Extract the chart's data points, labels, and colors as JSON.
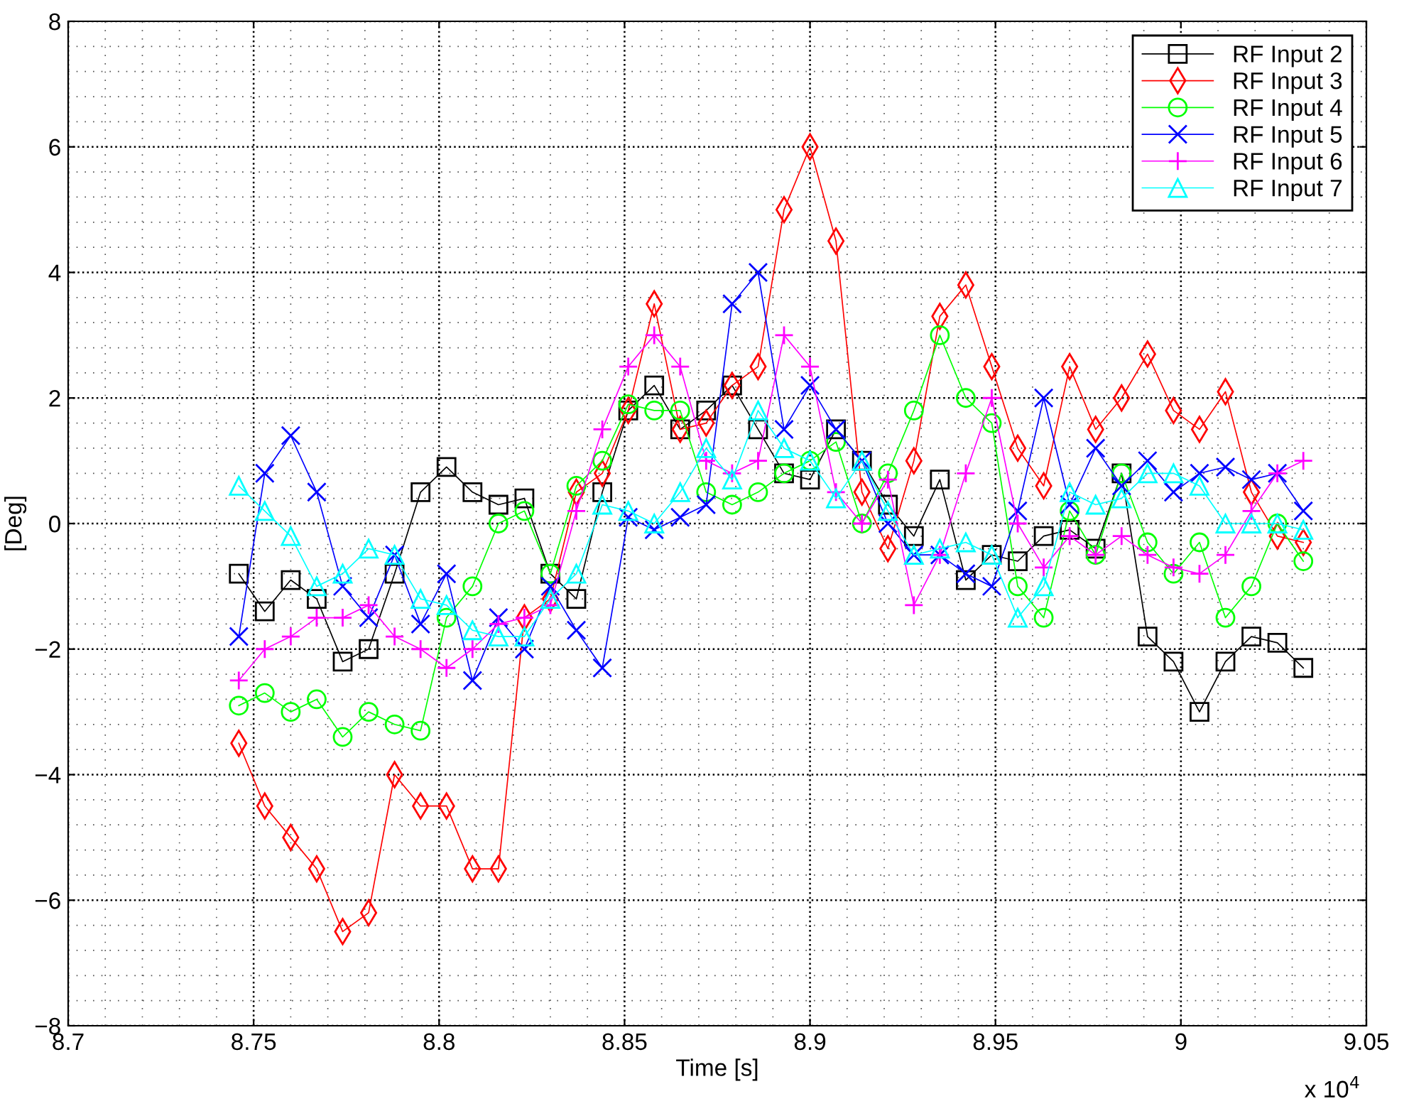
{
  "chart_data": {
    "type": "line",
    "xlabel": "Time [s]",
    "ylabel": "[Deg]",
    "x": [
      8.746,
      8.753,
      8.76,
      8.767,
      8.774,
      8.781,
      8.788,
      8.795,
      8.802,
      8.809,
      8.816,
      8.823,
      8.83,
      8.837,
      8.844,
      8.851,
      8.858,
      8.865,
      8.872,
      8.879,
      8.886,
      8.893,
      8.9,
      8.907,
      8.914,
      8.921,
      8.928,
      8.935,
      8.942,
      8.949,
      8.956,
      8.963,
      8.97,
      8.977,
      8.984,
      8.991,
      8.998,
      9.005,
      9.012,
      9.019,
      9.026,
      9.033
    ],
    "series": [
      {
        "name": "RF Input 2",
        "color": "#000000",
        "marker": "square",
        "values": [
          -0.8,
          -1.4,
          -0.9,
          -1.2,
          -2.2,
          -2.0,
          -0.8,
          0.5,
          0.9,
          0.5,
          0.3,
          0.4,
          -0.8,
          -1.2,
          0.5,
          1.8,
          2.2,
          1.5,
          1.8,
          2.2,
          1.5,
          0.8,
          0.7,
          1.5,
          1.0,
          0.3,
          -0.2,
          0.7,
          -0.9,
          -0.5,
          -0.6,
          -0.2,
          -0.1,
          -0.4,
          0.8,
          -1.8,
          -2.2,
          -3.0,
          -2.2,
          -1.8,
          -1.9,
          -2.3
        ]
      },
      {
        "name": "RF Input 3",
        "color": "#ff0000",
        "marker": "diamond",
        "values": [
          -3.5,
          -4.5,
          -5.0,
          -5.5,
          -6.5,
          -6.2,
          -4.0,
          -4.5,
          -4.5,
          -5.5,
          -5.5,
          -1.5,
          -1.2,
          0.5,
          0.8,
          1.8,
          3.5,
          1.5,
          1.6,
          2.2,
          2.5,
          5.0,
          6.0,
          4.5,
          0.5,
          -0.4,
          1.0,
          3.3,
          3.8,
          2.5,
          1.2,
          0.6,
          2.5,
          1.5,
          2.0,
          2.7,
          1.8,
          1.5,
          2.1,
          0.5,
          -0.2,
          -0.3
        ]
      },
      {
        "name": "RF Input 4",
        "color": "#00ff00",
        "marker": "circle",
        "values": [
          -2.9,
          -2.7,
          -3.0,
          -2.8,
          -3.4,
          -3.0,
          -3.2,
          -3.3,
          -1.5,
          -1.0,
          0.0,
          0.2,
          -0.8,
          0.6,
          1.0,
          1.9,
          1.8,
          1.8,
          0.5,
          0.3,
          0.5,
          0.8,
          1.0,
          1.3,
          0.0,
          0.8,
          1.8,
          3.0,
          2.0,
          1.6,
          -1.0,
          -1.5,
          0.2,
          -0.5,
          0.8,
          -0.3,
          -0.8,
          -0.3,
          -1.5,
          -1.0,
          0.0,
          -0.6
        ]
      },
      {
        "name": "RF Input 5",
        "color": "#0000ff",
        "marker": "x",
        "values": [
          -1.8,
          0.8,
          1.4,
          0.5,
          -1.0,
          -1.5,
          -0.5,
          -1.6,
          -0.8,
          -2.5,
          -1.5,
          -2.0,
          -1.0,
          -1.7,
          -2.3,
          0.1,
          -0.1,
          0.1,
          0.3,
          3.5,
          4.0,
          1.5,
          2.2,
          1.5,
          1.0,
          0.0,
          -0.5,
          -0.5,
          -0.8,
          -1.0,
          0.2,
          2.0,
          0.3,
          1.2,
          0.6,
          1.0,
          0.5,
          0.8,
          0.9,
          0.7,
          0.8,
          0.2
        ]
      },
      {
        "name": "RF Input 6",
        "color": "#ff00ff",
        "marker": "plus",
        "values": [
          -2.5,
          -2.0,
          -1.8,
          -1.5,
          -1.5,
          -1.3,
          -1.8,
          -2.0,
          -2.3,
          -2.0,
          -1.6,
          -1.5,
          -1.3,
          0.2,
          1.5,
          2.5,
          3.0,
          2.5,
          1.0,
          0.8,
          1.0,
          3.0,
          2.5,
          0.5,
          0.0,
          0.7,
          -1.3,
          -0.5,
          0.8,
          2.0,
          0.0,
          -0.7,
          -0.2,
          -0.5,
          -0.2,
          -0.5,
          -0.7,
          -0.8,
          -0.5,
          0.2,
          0.8,
          1.0
        ]
      },
      {
        "name": "RF Input 7",
        "color": "#00ffff",
        "marker": "triangle",
        "values": [
          0.6,
          0.2,
          -0.2,
          -1.0,
          -0.8,
          -0.4,
          -0.5,
          -1.2,
          -1.3,
          -1.7,
          -1.8,
          -1.8,
          -1.2,
          -0.8,
          0.3,
          0.2,
          0.0,
          0.5,
          1.2,
          0.7,
          1.8,
          1.2,
          1.0,
          0.4,
          1.0,
          0.2,
          -0.5,
          -0.4,
          -0.3,
          -0.5,
          -1.5,
          -1.0,
          0.5,
          0.3,
          0.4,
          0.8,
          0.8,
          0.6,
          0.0,
          0.0,
          0.0,
          -0.1
        ]
      }
    ],
    "xlim": [
      8.7,
      9.05
    ],
    "xticks": [
      8.7,
      8.75,
      8.8,
      8.85,
      8.9,
      8.95,
      9,
      9.05
    ],
    "ylim": [
      -8,
      8
    ],
    "yticks": [
      -8,
      -6,
      -4,
      -2,
      0,
      2,
      4,
      6,
      8
    ],
    "annotations": [
      "x 10$^{4}$"
    ],
    "grid": true,
    "legend": "top right",
    "line_style": "solid"
  }
}
